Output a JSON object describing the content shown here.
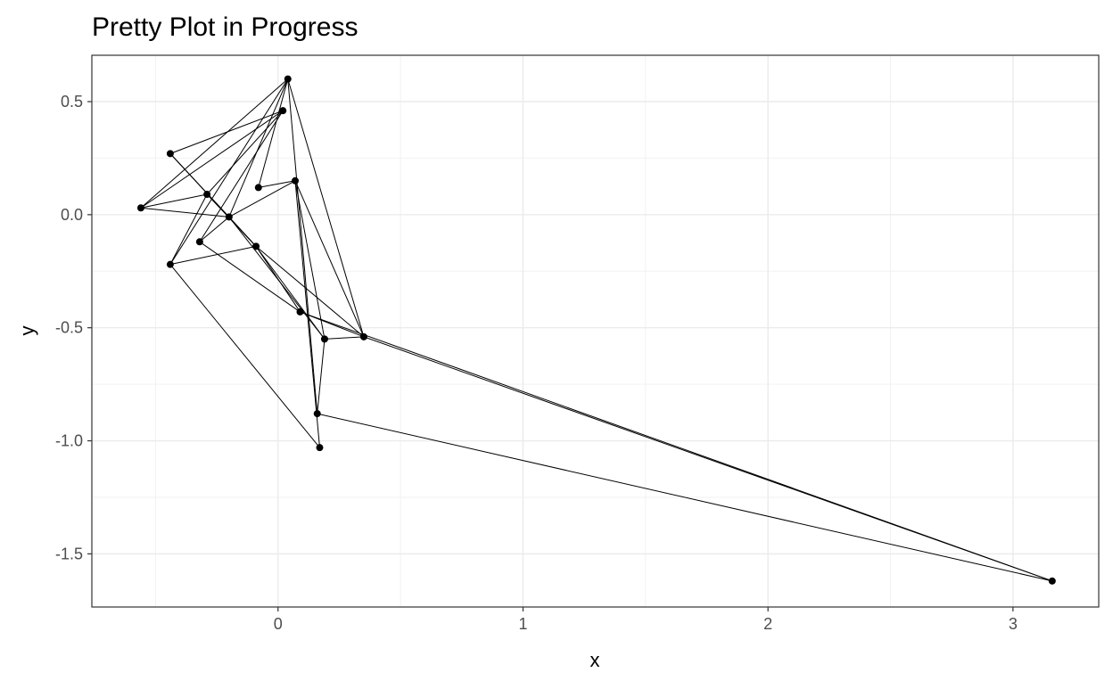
{
  "chart_data": {
    "type": "scatter",
    "title": "Pretty Plot in Progress",
    "xlabel": "x",
    "ylabel": "y",
    "xlim": [
      -0.76,
      3.35
    ],
    "ylim": [
      -1.735,
      0.705
    ],
    "xticks": [
      0,
      1,
      2,
      3
    ],
    "xtick_labels": [
      "0",
      "1",
      "2",
      "3"
    ],
    "yticks": [
      0.5,
      0.0,
      -0.5,
      -1.0,
      -1.5
    ],
    "ytick_labels": [
      "0.5",
      "0.0",
      "-0.5",
      "-1.0",
      "-1.5"
    ],
    "x_minor": [
      -0.5,
      0.5,
      1.5,
      2.5
    ],
    "y_minor": [
      0.25,
      -0.25,
      -0.75,
      -1.25
    ],
    "grid": true,
    "legend": "none",
    "points": [
      {
        "x": 0.04,
        "y": 0.6
      },
      {
        "x": 0.02,
        "y": 0.46
      },
      {
        "x": -0.44,
        "y": 0.27
      },
      {
        "x": -0.29,
        "y": 0.09
      },
      {
        "x": 0.07,
        "y": 0.15
      },
      {
        "x": -0.08,
        "y": 0.12
      },
      {
        "x": -0.56,
        "y": 0.03
      },
      {
        "x": -0.2,
        "y": -0.01
      },
      {
        "x": -0.32,
        "y": -0.12
      },
      {
        "x": -0.09,
        "y": -0.14
      },
      {
        "x": -0.44,
        "y": -0.22
      },
      {
        "x": 0.09,
        "y": -0.43
      },
      {
        "x": 0.19,
        "y": -0.55
      },
      {
        "x": 0.35,
        "y": -0.54
      },
      {
        "x": 0.16,
        "y": -0.88
      },
      {
        "x": 0.17,
        "y": -1.03
      },
      {
        "x": 3.16,
        "y": -1.62
      }
    ],
    "edges": [
      [
        0,
        6
      ],
      [
        0,
        10
      ],
      [
        0,
        14
      ],
      [
        0,
        13
      ],
      [
        0,
        5
      ],
      [
        0,
        7
      ],
      [
        1,
        6
      ],
      [
        1,
        3
      ],
      [
        1,
        2
      ],
      [
        1,
        8
      ],
      [
        2,
        7
      ],
      [
        3,
        6
      ],
      [
        3,
        10
      ],
      [
        3,
        9
      ],
      [
        4,
        5
      ],
      [
        4,
        7
      ],
      [
        4,
        13
      ],
      [
        4,
        15
      ],
      [
        4,
        12
      ],
      [
        6,
        7
      ],
      [
        7,
        9
      ],
      [
        7,
        12
      ],
      [
        8,
        11
      ],
      [
        8,
        7
      ],
      [
        9,
        10
      ],
      [
        9,
        12
      ],
      [
        9,
        13
      ],
      [
        9,
        11
      ],
      [
        10,
        15
      ],
      [
        11,
        13
      ],
      [
        11,
        16
      ],
      [
        12,
        14
      ],
      [
        12,
        13
      ],
      [
        13,
        16
      ],
      [
        14,
        16
      ],
      [
        2,
        9
      ]
    ]
  }
}
